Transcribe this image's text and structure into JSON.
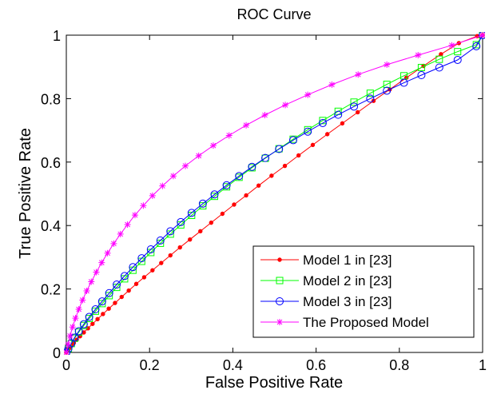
{
  "chart_data": {
    "type": "line",
    "title": "ROC Curve",
    "xlabel": "False Positive Rate",
    "ylabel": "True Positive Rate",
    "xlim": [
      0,
      1
    ],
    "ylim": [
      0,
      1
    ],
    "xticks": [
      "0",
      "0.2",
      "0.4",
      "0.6",
      "0.8",
      "1"
    ],
    "yticks": [
      "0",
      "0.2",
      "0.4",
      "0.6",
      "0.8",
      "1"
    ],
    "grid": false,
    "legend_position": "bottom-right",
    "series": [
      {
        "name": "Model 1 in [23]",
        "color": "#ff0000",
        "marker": "dot",
        "x": [
          0,
          0.003,
          0.007,
          0.012,
          0.018,
          0.025,
          0.033,
          0.042,
          0.052,
          0.063,
          0.075,
          0.088,
          0.102,
          0.117,
          0.133,
          0.15,
          0.168,
          0.187,
          0.207,
          0.228,
          0.25,
          0.273,
          0.297,
          0.322,
          0.348,
          0.375,
          0.403,
          0.432,
          0.462,
          0.493,
          0.525,
          0.558,
          0.592,
          0.627,
          0.663,
          0.7,
          0.738,
          0.777,
          0.817,
          0.858,
          0.9,
          0.943,
          0.987,
          1.0
        ],
        "y": [
          0,
          0.006,
          0.013,
          0.021,
          0.03,
          0.04,
          0.051,
          0.063,
          0.076,
          0.09,
          0.105,
          0.121,
          0.138,
          0.156,
          0.175,
          0.195,
          0.216,
          0.237,
          0.259,
          0.282,
          0.306,
          0.331,
          0.356,
          0.382,
          0.409,
          0.437,
          0.466,
          0.495,
          0.526,
          0.557,
          0.588,
          0.621,
          0.654,
          0.688,
          0.722,
          0.757,
          0.793,
          0.829,
          0.866,
          0.903,
          0.94,
          0.975,
          0.997,
          1.0
        ]
      },
      {
        "name": "Model 2 in [23]",
        "color": "#00ff00",
        "marker": "square",
        "x": [
          0,
          0.005,
          0.012,
          0.02,
          0.03,
          0.042,
          0.055,
          0.07,
          0.086,
          0.103,
          0.121,
          0.14,
          0.16,
          0.181,
          0.203,
          0.226,
          0.25,
          0.275,
          0.301,
          0.328,
          0.356,
          0.385,
          0.415,
          0.446,
          0.478,
          0.511,
          0.545,
          0.58,
          0.616,
          0.653,
          0.691,
          0.73,
          0.77,
          0.811,
          0.853,
          0.896,
          0.94,
          0.985,
          1.0
        ],
        "y": [
          0,
          0.012,
          0.028,
          0.045,
          0.064,
          0.085,
          0.107,
          0.13,
          0.154,
          0.179,
          0.205,
          0.232,
          0.259,
          0.287,
          0.315,
          0.344,
          0.373,
          0.402,
          0.432,
          0.462,
          0.492,
          0.522,
          0.552,
          0.582,
          0.612,
          0.642,
          0.672,
          0.702,
          0.731,
          0.76,
          0.789,
          0.817,
          0.845,
          0.872,
          0.898,
          0.924,
          0.948,
          0.97,
          1.0
        ]
      },
      {
        "name": "Model 3 in [23]",
        "color": "#0000ff",
        "marker": "circle",
        "x": [
          0,
          0.005,
          0.012,
          0.02,
          0.03,
          0.042,
          0.055,
          0.07,
          0.086,
          0.103,
          0.121,
          0.14,
          0.16,
          0.181,
          0.203,
          0.226,
          0.25,
          0.275,
          0.301,
          0.328,
          0.356,
          0.385,
          0.415,
          0.446,
          0.478,
          0.511,
          0.545,
          0.58,
          0.616,
          0.653,
          0.691,
          0.73,
          0.77,
          0.811,
          0.853,
          0.896,
          0.94,
          0.985,
          1.0
        ],
        "y": [
          0,
          0.012,
          0.029,
          0.047,
          0.067,
          0.089,
          0.112,
          0.136,
          0.161,
          0.187,
          0.214,
          0.241,
          0.269,
          0.297,
          0.325,
          0.353,
          0.382,
          0.411,
          0.44,
          0.469,
          0.498,
          0.527,
          0.556,
          0.585,
          0.613,
          0.641,
          0.669,
          0.696,
          0.723,
          0.749,
          0.775,
          0.8,
          0.825,
          0.85,
          0.874,
          0.898,
          0.922,
          0.965,
          1.0
        ]
      },
      {
        "name": "The Proposed Model",
        "color": "#ff00ff",
        "marker": "star",
        "x": [
          0,
          0.004,
          0.009,
          0.015,
          0.022,
          0.03,
          0.039,
          0.049,
          0.06,
          0.072,
          0.085,
          0.099,
          0.114,
          0.13,
          0.147,
          0.165,
          0.185,
          0.207,
          0.231,
          0.257,
          0.286,
          0.318,
          0.353,
          0.391,
          0.432,
          0.477,
          0.526,
          0.58,
          0.638,
          0.701,
          0.77,
          0.845,
          0.926,
          1.0
        ],
        "y": [
          0,
          0.025,
          0.052,
          0.08,
          0.108,
          0.136,
          0.165,
          0.194,
          0.223,
          0.253,
          0.283,
          0.313,
          0.343,
          0.373,
          0.403,
          0.433,
          0.463,
          0.494,
          0.525,
          0.556,
          0.588,
          0.62,
          0.652,
          0.684,
          0.716,
          0.748,
          0.78,
          0.812,
          0.844,
          0.876,
          0.907,
          0.937,
          0.968,
          1.0
        ]
      }
    ]
  }
}
